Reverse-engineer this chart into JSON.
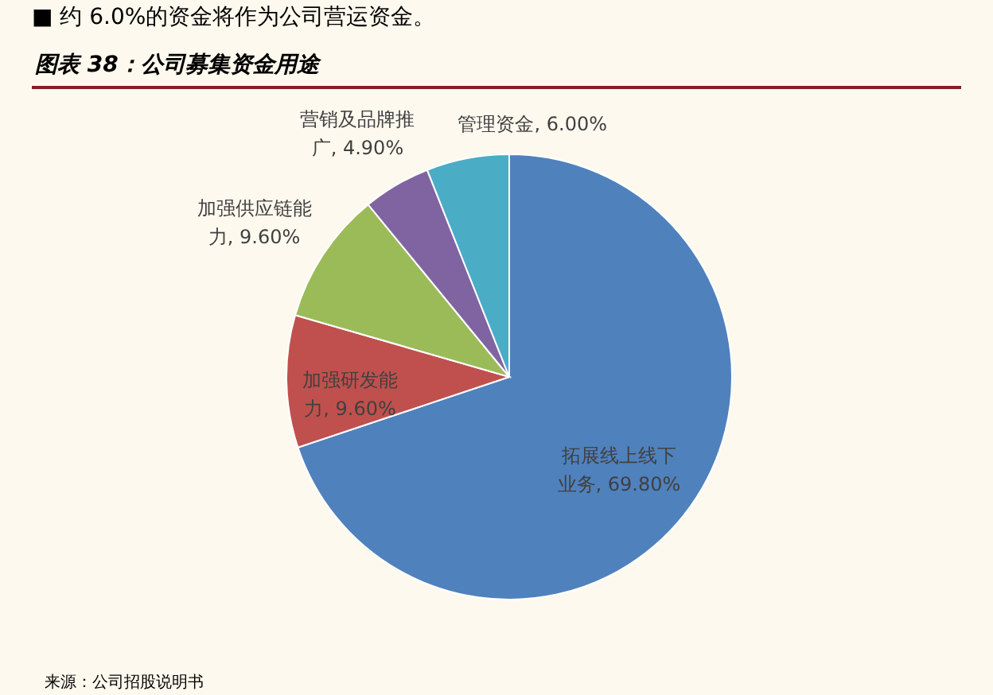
{
  "chart_data": {
    "type": "pie",
    "title": "图表 38：公司募集资金用途",
    "annotations": [
      "■ 约 6.0%的资金将作为公司营运资金。",
      "来源：公司招股说明书"
    ],
    "categories": [
      "拓展线上线下业务",
      "加强研发能力",
      "加强供应链能力",
      "营销及品牌推广",
      "管理资金"
    ],
    "values": [
      69.8,
      9.6,
      9.6,
      4.9,
      6.0
    ],
    "value_labels": [
      "69.80%",
      "9.60%",
      "9.60%",
      "4.90%",
      "6.00%"
    ],
    "colors": [
      "#4f81bd",
      "#c0504d",
      "#9bbb59",
      "#8064a2",
      "#4bacc6"
    ]
  }
}
